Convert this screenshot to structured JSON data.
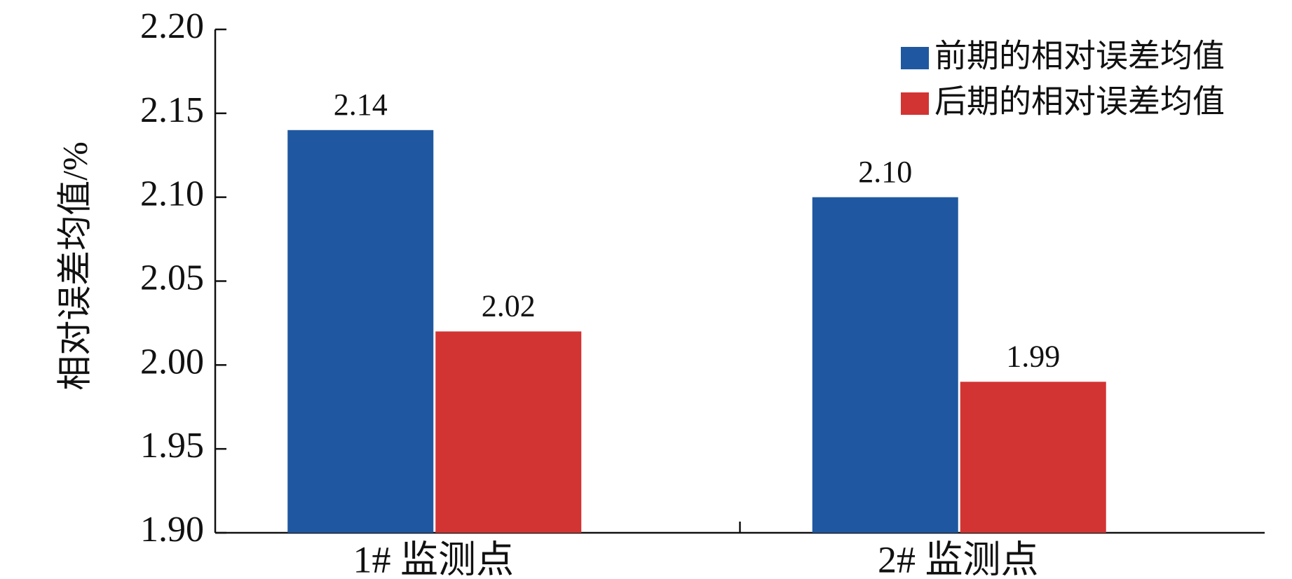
{
  "chart_data": {
    "type": "bar",
    "y_label": "相对误差均值/%",
    "categories": [
      "1# 监测点",
      "2# 监测点"
    ],
    "series": [
      {
        "name": "前期的相对误差均值",
        "color": "#1f58a0",
        "values": [
          2.14,
          2.1
        ],
        "value_labels": [
          "2.14",
          "2.10"
        ]
      },
      {
        "name": "后期的相对误差均值",
        "color": "#d23434",
        "values": [
          2.02,
          1.99
        ],
        "value_labels": [
          "2.02",
          "1.99"
        ]
      }
    ],
    "ylim": [
      1.9,
      2.2
    ],
    "yticks": [
      {
        "value": 1.9,
        "label": "1.90"
      },
      {
        "value": 1.95,
        "label": "1.95"
      },
      {
        "value": 2.0,
        "label": "2.00"
      },
      {
        "value": 2.05,
        "label": "2.05"
      },
      {
        "value": 2.1,
        "label": "2.10"
      },
      {
        "value": 2.15,
        "label": "2.15"
      },
      {
        "value": 2.2,
        "label": "2.20"
      }
    ],
    "grid": false,
    "legend": "upper right"
  }
}
